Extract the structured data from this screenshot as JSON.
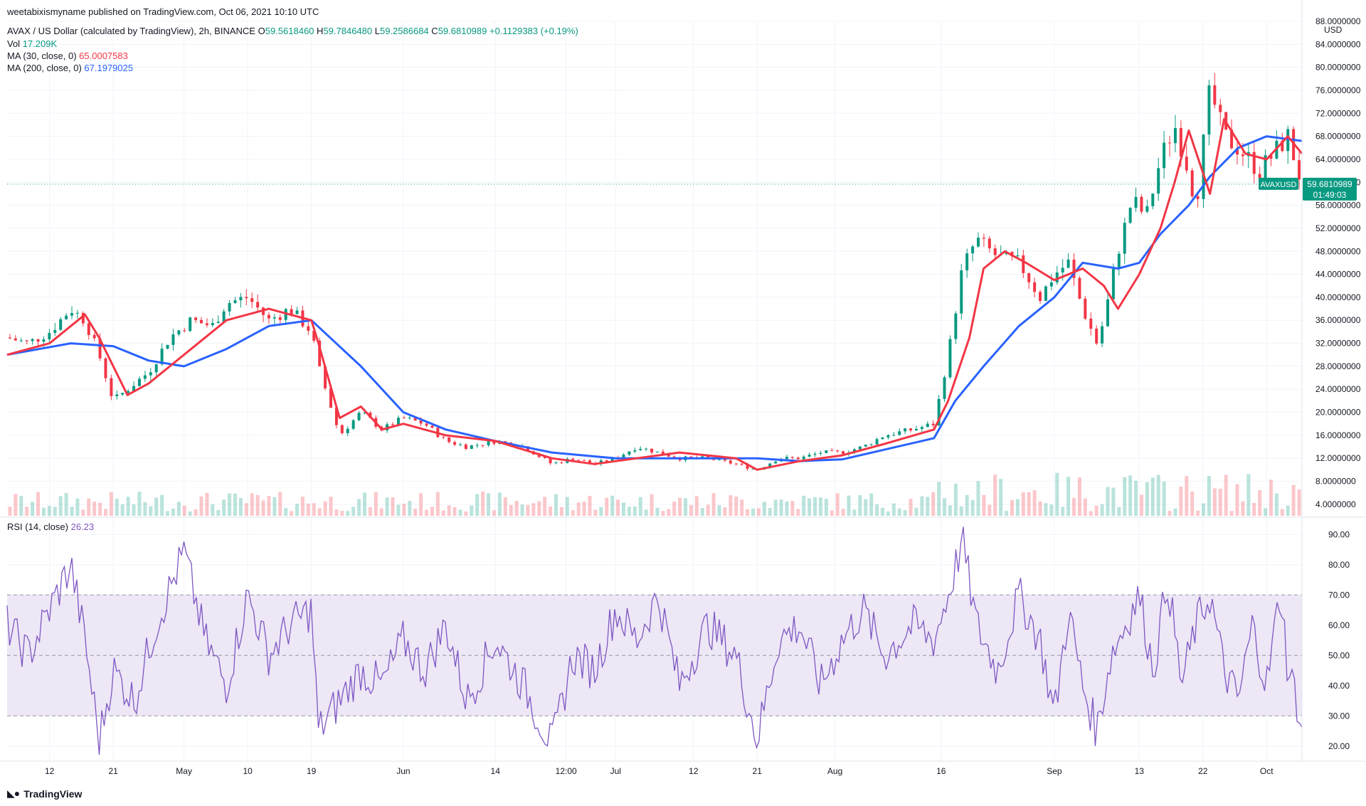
{
  "publish_line": "weetabixismyname published on TradingView.com, Oct 06, 2021 10:10 UTC",
  "header": {
    "symbol": "AVAX / US Dollar (calculated by TradingView), 2h, BINANCE",
    "o_label": "O",
    "o_value": "59.5618460",
    "h_label": "H",
    "h_value": "59.7846480",
    "l_label": "L",
    "l_value": "59.2586684",
    "c_label": "C",
    "c_value": "59.6810989",
    "change": "+0.1129383 (+0.19%)",
    "vol_label": "Vol",
    "vol_value": "17.209K",
    "ma30_label": "MA (30, close, 0)",
    "ma30_value": "65.0007583",
    "ma200_label": "MA (200, close, 0)",
    "ma200_value": "67.1979025",
    "rsi_label": "RSI (14, close)",
    "rsi_value": "26.23"
  },
  "price_tag": {
    "symbol": "AVAXUSD",
    "price": "59.6810989",
    "countdown": "01:49:03"
  },
  "branding": {
    "name": "TradingView"
  },
  "colors": {
    "up": "#089981",
    "down": "#f23645",
    "ma30": "#f23645",
    "ma200": "#2962ff",
    "rsi": "#7e57c2",
    "rsi_band": "#ede7f6",
    "grid": "#f0f3fa",
    "tag_bg": "#089981"
  },
  "chart_data": [
    {
      "type": "candlestick",
      "title": "AVAX / US Dollar (calculated by TradingView), 2h, BINANCE",
      "ylabel": "USD",
      "ylim": [
        2.0,
        88.0
      ],
      "y_ticks": [
        "4.0000000",
        "8.0000000",
        "12.0000000",
        "16.0000000",
        "20.0000000",
        "24.0000000",
        "28.0000000",
        "32.0000000",
        "36.0000000",
        "40.0000000",
        "44.0000000",
        "48.0000000",
        "52.0000000",
        "56.0000000",
        "60.0000000",
        "64.0000000",
        "68.0000000",
        "72.0000000",
        "76.0000000",
        "80.0000000",
        "84.0000000",
        "88.0000000"
      ],
      "x_tick_labels": [
        "12",
        "21",
        "May",
        "10",
        "19",
        "Jun",
        "14",
        "12:00",
        "Jul",
        "12",
        "21",
        "Aug",
        "16",
        "Sep",
        "13",
        "22",
        "Oct"
      ],
      "x_tick_dates": [
        "2021-04-12",
        "2021-04-21",
        "2021-05-01",
        "2021-05-10",
        "2021-05-19",
        "2021-06-01",
        "2021-06-14",
        "2021-06-24",
        "2021-07-01",
        "2021-07-12",
        "2021-07-21",
        "2021-08-01",
        "2021-08-16",
        "2021-09-01",
        "2021-09-13",
        "2021-09-22",
        "2021-10-01"
      ],
      "x_range": [
        "2021-04-06",
        "2021-10-06"
      ],
      "close_series": {
        "dates": [
          "2021-04-06",
          "2021-04-09",
          "2021-04-12",
          "2021-04-15",
          "2021-04-17",
          "2021-04-19",
          "2021-04-21",
          "2021-04-23",
          "2021-04-26",
          "2021-04-29",
          "2021-05-02",
          "2021-05-05",
          "2021-05-07",
          "2021-05-10",
          "2021-05-13",
          "2021-05-16",
          "2021-05-19",
          "2021-05-20",
          "2021-05-23",
          "2021-05-26",
          "2021-05-29",
          "2021-06-01",
          "2021-06-04",
          "2021-06-07",
          "2021-06-10",
          "2021-06-14",
          "2021-06-18",
          "2021-06-22",
          "2021-06-25",
          "2021-06-28",
          "2021-07-01",
          "2021-07-04",
          "2021-07-07",
          "2021-07-10",
          "2021-07-14",
          "2021-07-18",
          "2021-07-21",
          "2021-07-24",
          "2021-07-27",
          "2021-07-30",
          "2021-08-02",
          "2021-08-05",
          "2021-08-08",
          "2021-08-12",
          "2021-08-15",
          "2021-08-17",
          "2021-08-19",
          "2021-08-21",
          "2021-08-24",
          "2021-08-27",
          "2021-08-30",
          "2021-09-01",
          "2021-09-03",
          "2021-09-05",
          "2021-09-07",
          "2021-09-08",
          "2021-09-10",
          "2021-09-12",
          "2021-09-14",
          "2021-09-16",
          "2021-09-18",
          "2021-09-20",
          "2021-09-21",
          "2021-09-23",
          "2021-09-25",
          "2021-09-27",
          "2021-09-30",
          "2021-10-02",
          "2021-10-04",
          "2021-10-06"
        ],
        "close": [
          33,
          32,
          34,
          38,
          36,
          30,
          22,
          24,
          27,
          33,
          36,
          35,
          39,
          40,
          36,
          38,
          34,
          28,
          16,
          20,
          17,
          19,
          18,
          15,
          14,
          15,
          14,
          11,
          12,
          11,
          12,
          14,
          13,
          12,
          12,
          11,
          10,
          12,
          12,
          13,
          13,
          14,
          16,
          17,
          18,
          30,
          45,
          50,
          47,
          46,
          40,
          44,
          46,
          38,
          32,
          36,
          48,
          57,
          54,
          64,
          70,
          62,
          56,
          76,
          68,
          66,
          62,
          65,
          68,
          59.68
        ]
      },
      "series": [
        {
          "name": "MA (30, close, 0)",
          "last_value": 65.0007583,
          "dates": [
            "2021-04-06",
            "2021-04-12",
            "2021-04-17",
            "2021-04-19",
            "2021-04-23",
            "2021-04-26",
            "2021-05-01",
            "2021-05-07",
            "2021-05-13",
            "2021-05-16",
            "2021-05-19",
            "2021-05-20",
            "2021-05-23",
            "2021-05-26",
            "2021-05-29",
            "2021-06-01",
            "2021-06-07",
            "2021-06-14",
            "2021-06-22",
            "2021-06-28",
            "2021-07-04",
            "2021-07-10",
            "2021-07-18",
            "2021-07-21",
            "2021-07-27",
            "2021-08-02",
            "2021-08-08",
            "2021-08-15",
            "2021-08-17",
            "2021-08-20",
            "2021-08-22",
            "2021-08-25",
            "2021-08-28",
            "2021-09-01",
            "2021-09-05",
            "2021-09-08",
            "2021-09-10",
            "2021-09-13",
            "2021-09-16",
            "2021-09-18",
            "2021-09-20",
            "2021-09-23",
            "2021-09-25",
            "2021-09-28",
            "2021-10-01",
            "2021-10-04",
            "2021-10-06"
          ],
          "values": [
            30,
            32,
            37,
            33,
            23,
            25,
            30,
            36,
            38,
            37,
            36,
            32,
            19,
            21,
            17,
            18,
            16,
            15,
            12,
            11,
            12,
            13,
            12,
            10,
            11.5,
            12.5,
            14.5,
            17,
            22,
            33,
            45,
            48,
            46,
            43,
            45,
            42,
            38,
            44,
            52,
            60,
            69,
            58,
            71,
            65,
            64,
            68,
            65
          ]
        },
        {
          "name": "MA (200, close, 0)",
          "last_value": 67.1979025,
          "dates": [
            "2021-04-06",
            "2021-04-15",
            "2021-04-21",
            "2021-04-26",
            "2021-05-01",
            "2021-05-07",
            "2021-05-13",
            "2021-05-19",
            "2021-05-26",
            "2021-06-01",
            "2021-06-07",
            "2021-06-14",
            "2021-06-22",
            "2021-07-01",
            "2021-07-10",
            "2021-07-21",
            "2021-07-27",
            "2021-08-02",
            "2021-08-08",
            "2021-08-15",
            "2021-08-18",
            "2021-08-22",
            "2021-08-27",
            "2021-09-01",
            "2021-09-05",
            "2021-09-10",
            "2021-09-13",
            "2021-09-16",
            "2021-09-20",
            "2021-09-23",
            "2021-09-27",
            "2021-10-01",
            "2021-10-06"
          ],
          "values": [
            30,
            32,
            31.5,
            29,
            28,
            31,
            35,
            36,
            28,
            20,
            17,
            15,
            13,
            12,
            12,
            12,
            11.5,
            11.8,
            13.5,
            15.5,
            22,
            28,
            35,
            40,
            46,
            45,
            46,
            51,
            56,
            61,
            66,
            68,
            67.2
          ]
        }
      ],
      "volume": {
        "name": "Vol",
        "last_value": "17.209K"
      },
      "last_price": 59.6810989,
      "grid": true,
      "legend": "top-left"
    },
    {
      "type": "line",
      "title": "RSI (14, close)",
      "ylim": [
        15,
        95
      ],
      "y_ticks": [
        "20.00",
        "30.00",
        "40.00",
        "50.00",
        "60.00",
        "70.00",
        "80.00",
        "90.00"
      ],
      "band": [
        30,
        70
      ],
      "midline": 50,
      "series": [
        {
          "name": "RSI (14, close)",
          "last_value": 26.23,
          "dates": [
            "2021-04-06",
            "2021-04-09",
            "2021-04-12",
            "2021-04-15",
            "2021-04-17",
            "2021-04-19",
            "2021-04-21",
            "2021-04-24",
            "2021-04-27",
            "2021-05-01",
            "2021-05-04",
            "2021-05-07",
            "2021-05-10",
            "2021-05-13",
            "2021-05-16",
            "2021-05-19",
            "2021-05-20",
            "2021-05-23",
            "2021-05-26",
            "2021-05-29",
            "2021-06-01",
            "2021-06-04",
            "2021-06-07",
            "2021-06-10",
            "2021-06-14",
            "2021-06-18",
            "2021-06-22",
            "2021-06-25",
            "2021-06-28",
            "2021-07-01",
            "2021-07-04",
            "2021-07-07",
            "2021-07-10",
            "2021-07-14",
            "2021-07-18",
            "2021-07-21",
            "2021-07-24",
            "2021-07-27",
            "2021-07-30",
            "2021-08-02",
            "2021-08-05",
            "2021-08-08",
            "2021-08-12",
            "2021-08-15",
            "2021-08-17",
            "2021-08-19",
            "2021-08-21",
            "2021-08-24",
            "2021-08-27",
            "2021-08-30",
            "2021-09-01",
            "2021-09-03",
            "2021-09-05",
            "2021-09-07",
            "2021-09-09",
            "2021-09-11",
            "2021-09-13",
            "2021-09-15",
            "2021-09-17",
            "2021-09-19",
            "2021-09-21",
            "2021-09-23",
            "2021-09-25",
            "2021-09-27",
            "2021-09-29",
            "2021-10-01",
            "2021-10-03",
            "2021-10-04",
            "2021-10-05",
            "2021-10-06"
          ],
          "values": [
            60,
            50,
            65,
            80,
            55,
            22,
            45,
            35,
            60,
            84,
            55,
            40,
            70,
            50,
            60,
            65,
            25,
            35,
            45,
            40,
            55,
            45,
            60,
            35,
            55,
            40,
            20,
            50,
            45,
            65,
            55,
            70,
            40,
            60,
            50,
            22,
            55,
            60,
            40,
            55,
            65,
            50,
            60,
            55,
            70,
            88,
            60,
            45,
            70,
            55,
            30,
            65,
            40,
            25,
            50,
            60,
            70,
            45,
            75,
            40,
            60,
            70,
            45,
            35,
            60,
            40,
            72,
            45,
            38,
            26.23
          ]
        }
      ],
      "grid": true
    }
  ]
}
